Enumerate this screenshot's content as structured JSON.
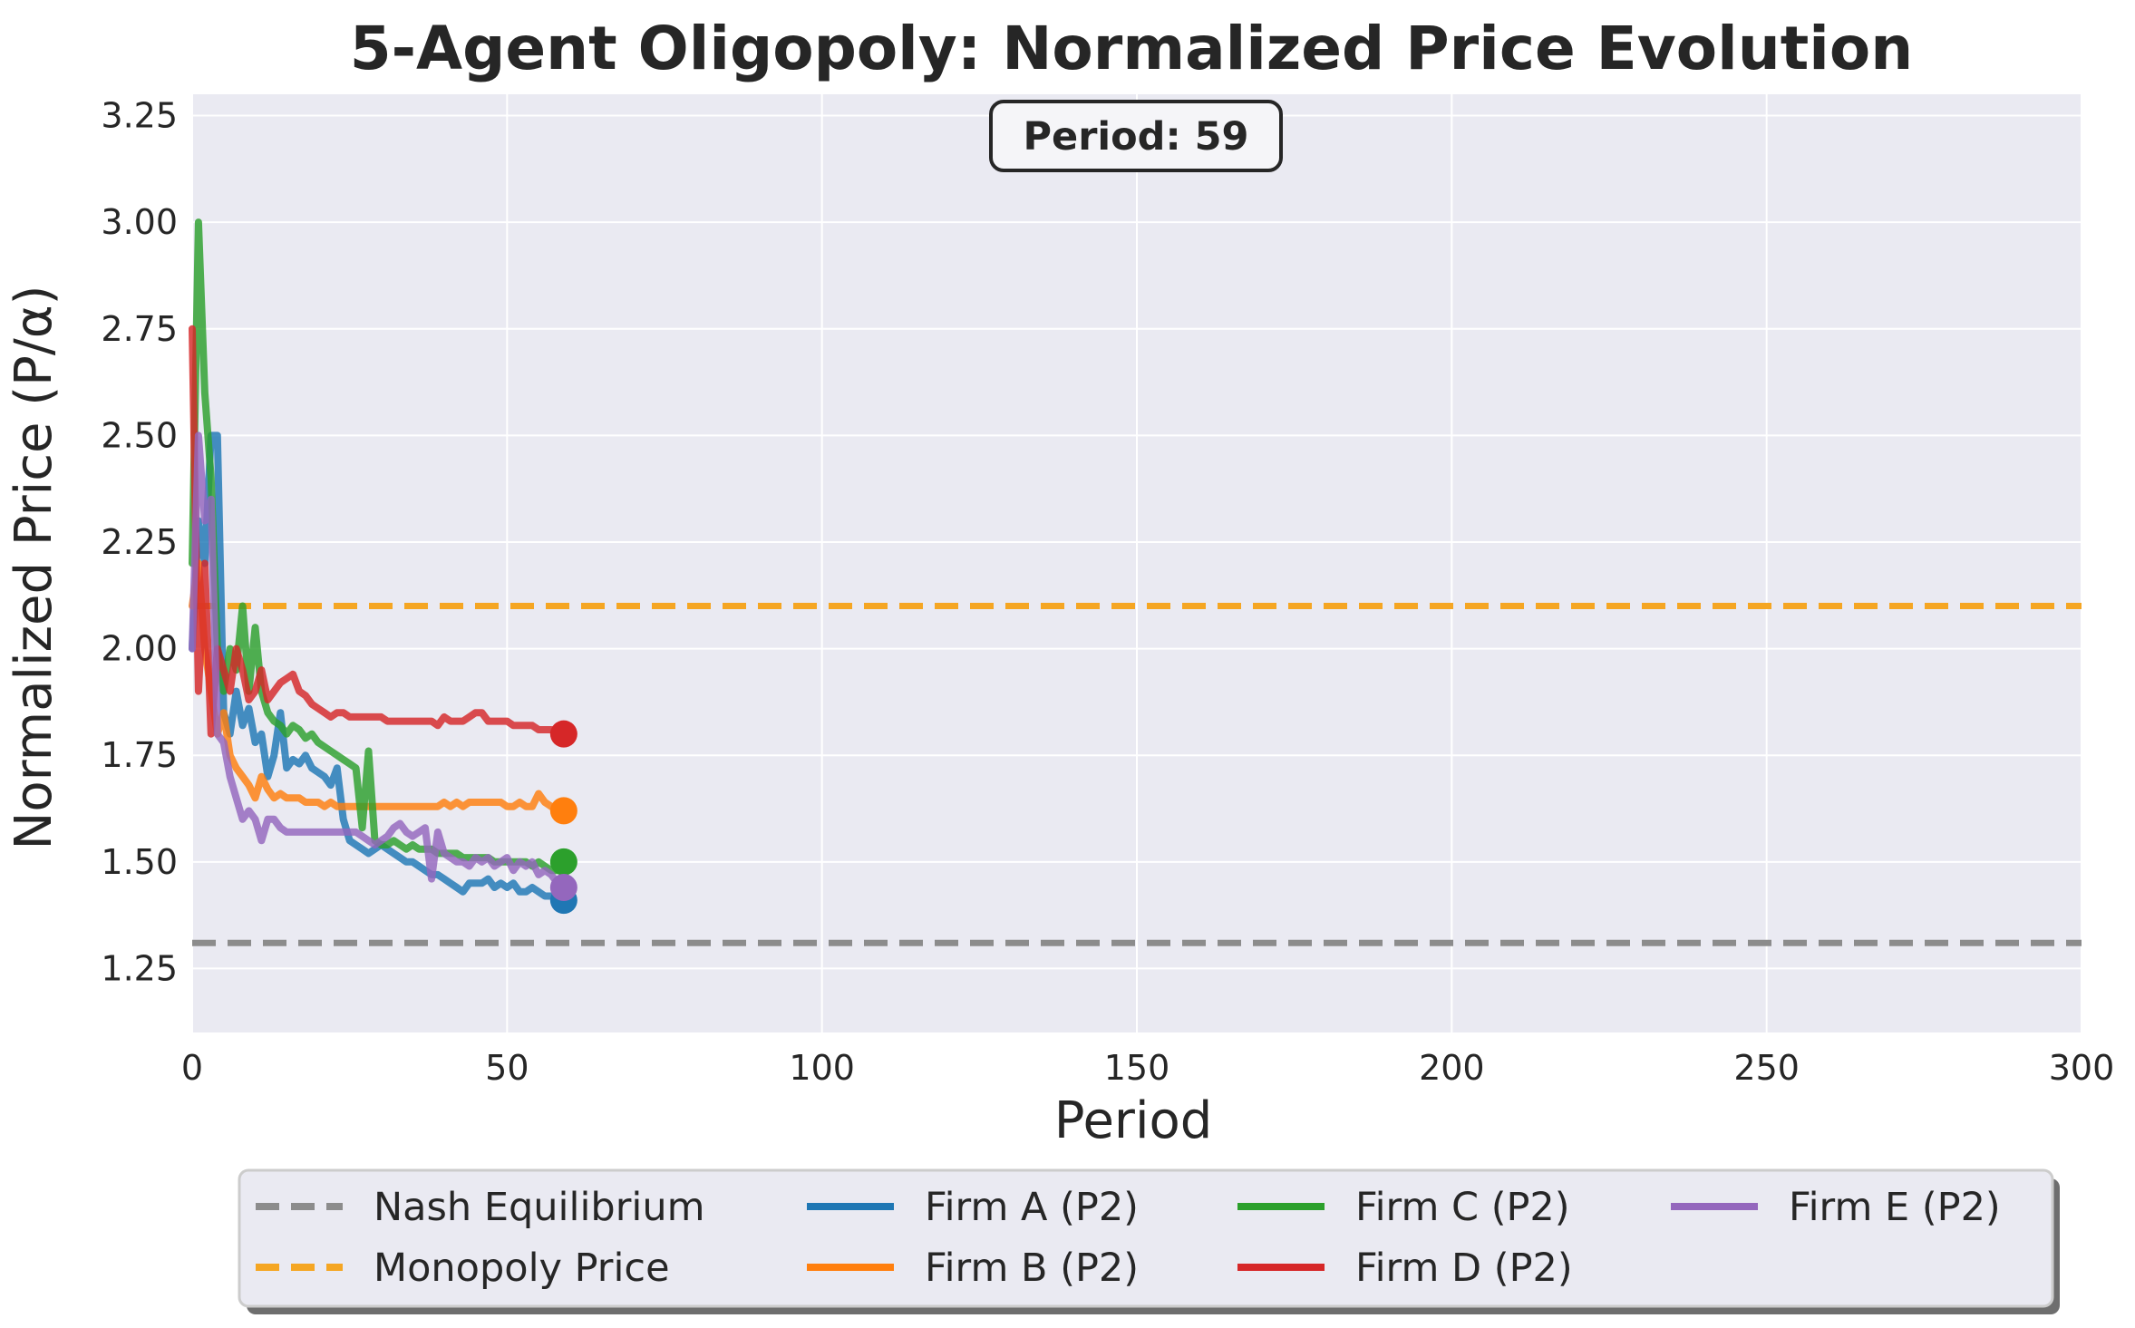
{
  "chart_data": {
    "type": "line",
    "title": "5-Agent Oligopoly: Normalized Price Evolution",
    "xlabel": "Period",
    "ylabel": "Normalized Price (P/α)",
    "xlim": [
      0,
      300
    ],
    "ylim": [
      1.1,
      3.3
    ],
    "xticks": [
      0,
      50,
      100,
      150,
      200,
      250,
      300
    ],
    "yticks": [
      1.25,
      1.5,
      1.75,
      2.0,
      2.25,
      2.5,
      2.75,
      3.0,
      3.25
    ],
    "xtick_labels": [
      "0",
      "50",
      "100",
      "150",
      "200",
      "250",
      "300"
    ],
    "ytick_labels": [
      "1.25",
      "1.50",
      "1.75",
      "2.00",
      "2.25",
      "2.50",
      "2.75",
      "3.00",
      "3.25"
    ],
    "grid": true,
    "legend_position": "bottom-center",
    "annotation": "Period: 59",
    "reference_lines": [
      {
        "name": "Nash Equilibrium",
        "y": 1.31,
        "color": "#8c8c8c",
        "style": "dashed"
      },
      {
        "name": "Monopoly Price",
        "y": 2.1,
        "color": "#f5a623",
        "style": "dashed"
      }
    ],
    "series": [
      {
        "name": "Firm A (P2)",
        "color": "#1f77b4",
        "x": [
          0,
          1,
          2,
          3,
          4,
          5,
          6,
          7,
          8,
          9,
          10,
          11,
          12,
          13,
          14,
          15,
          16,
          17,
          18,
          19,
          20,
          21,
          22,
          23,
          24,
          25,
          26,
          27,
          28,
          29,
          30,
          31,
          32,
          33,
          34,
          35,
          36,
          37,
          38,
          39,
          40,
          41,
          42,
          43,
          44,
          45,
          46,
          47,
          48,
          49,
          50,
          51,
          52,
          53,
          54,
          55,
          56,
          57,
          58,
          59
        ],
        "y": [
          2.0,
          2.3,
          2.2,
          2.5,
          2.5,
          1.85,
          1.8,
          1.9,
          1.82,
          1.86,
          1.78,
          1.8,
          1.7,
          1.75,
          1.85,
          1.72,
          1.74,
          1.73,
          1.75,
          1.72,
          1.71,
          1.7,
          1.68,
          1.72,
          1.6,
          1.55,
          1.54,
          1.53,
          1.52,
          1.53,
          1.54,
          1.53,
          1.52,
          1.51,
          1.5,
          1.5,
          1.49,
          1.48,
          1.47,
          1.47,
          1.46,
          1.45,
          1.44,
          1.43,
          1.45,
          1.45,
          1.45,
          1.46,
          1.44,
          1.45,
          1.44,
          1.45,
          1.43,
          1.43,
          1.44,
          1.43,
          1.42,
          1.42,
          1.41,
          1.41
        ]
      },
      {
        "name": "Firm B (P2)",
        "color": "#ff7f0e",
        "x": [
          0,
          1,
          2,
          3,
          4,
          5,
          6,
          7,
          8,
          9,
          10,
          11,
          12,
          13,
          14,
          15,
          16,
          17,
          18,
          19,
          20,
          21,
          22,
          23,
          24,
          25,
          26,
          27,
          28,
          29,
          30,
          31,
          32,
          33,
          34,
          35,
          36,
          37,
          38,
          39,
          40,
          41,
          42,
          43,
          44,
          45,
          46,
          47,
          48,
          49,
          50,
          51,
          52,
          53,
          54,
          55,
          56,
          57,
          58,
          59
        ],
        "y": [
          2.1,
          2.2,
          2.0,
          1.9,
          1.8,
          1.85,
          1.75,
          1.72,
          1.7,
          1.68,
          1.65,
          1.7,
          1.67,
          1.65,
          1.66,
          1.65,
          1.65,
          1.65,
          1.64,
          1.64,
          1.64,
          1.63,
          1.64,
          1.63,
          1.63,
          1.63,
          1.63,
          1.63,
          1.63,
          1.63,
          1.63,
          1.63,
          1.63,
          1.63,
          1.63,
          1.63,
          1.63,
          1.63,
          1.63,
          1.63,
          1.64,
          1.63,
          1.64,
          1.63,
          1.64,
          1.64,
          1.64,
          1.64,
          1.64,
          1.64,
          1.63,
          1.63,
          1.64,
          1.63,
          1.63,
          1.66,
          1.64,
          1.63,
          1.62,
          1.62
        ]
      },
      {
        "name": "Firm C (P2)",
        "color": "#2ca02c",
        "x": [
          0,
          1,
          2,
          3,
          4,
          5,
          6,
          7,
          8,
          9,
          10,
          11,
          12,
          13,
          14,
          15,
          16,
          17,
          18,
          19,
          20,
          21,
          22,
          23,
          24,
          25,
          26,
          27,
          28,
          29,
          30,
          31,
          32,
          33,
          34,
          35,
          36,
          37,
          38,
          39,
          40,
          41,
          42,
          43,
          44,
          45,
          46,
          47,
          48,
          49,
          50,
          51,
          52,
          53,
          54,
          55,
          56,
          57,
          58,
          59
        ],
        "y": [
          2.2,
          3.0,
          2.6,
          2.4,
          2.0,
          1.9,
          2.0,
          1.95,
          2.1,
          1.9,
          2.05,
          1.9,
          1.85,
          1.83,
          1.82,
          1.8,
          1.82,
          1.81,
          1.79,
          1.8,
          1.78,
          1.77,
          1.76,
          1.75,
          1.74,
          1.73,
          1.72,
          1.58,
          1.76,
          1.55,
          1.54,
          1.54,
          1.55,
          1.54,
          1.53,
          1.54,
          1.53,
          1.53,
          1.53,
          1.52,
          1.52,
          1.52,
          1.52,
          1.51,
          1.51,
          1.51,
          1.51,
          1.51,
          1.5,
          1.5,
          1.5,
          1.5,
          1.5,
          1.5,
          1.49,
          1.5,
          1.49,
          1.48,
          1.48,
          1.5
        ]
      },
      {
        "name": "Firm D (P2)",
        "color": "#d62728",
        "x": [
          0,
          1,
          2,
          3,
          4,
          5,
          6,
          7,
          8,
          9,
          10,
          11,
          12,
          13,
          14,
          15,
          16,
          17,
          18,
          19,
          20,
          21,
          22,
          23,
          24,
          25,
          26,
          27,
          28,
          29,
          30,
          31,
          32,
          33,
          34,
          35,
          36,
          37,
          38,
          39,
          40,
          41,
          42,
          43,
          44,
          45,
          46,
          47,
          48,
          49,
          50,
          51,
          52,
          53,
          54,
          55,
          56,
          57,
          58,
          59
        ],
        "y": [
          2.75,
          1.9,
          2.2,
          1.8,
          2.0,
          1.95,
          1.9,
          2.0,
          1.95,
          1.88,
          1.9,
          1.95,
          1.88,
          1.9,
          1.92,
          1.93,
          1.94,
          1.9,
          1.89,
          1.87,
          1.86,
          1.85,
          1.84,
          1.85,
          1.85,
          1.84,
          1.84,
          1.84,
          1.84,
          1.84,
          1.84,
          1.83,
          1.83,
          1.83,
          1.83,
          1.83,
          1.83,
          1.83,
          1.83,
          1.82,
          1.84,
          1.83,
          1.83,
          1.83,
          1.84,
          1.85,
          1.85,
          1.83,
          1.83,
          1.83,
          1.83,
          1.82,
          1.82,
          1.82,
          1.82,
          1.81,
          1.81,
          1.81,
          1.8,
          1.8
        ]
      },
      {
        "name": "Firm E (P2)",
        "color": "#9467bd",
        "x": [
          0,
          1,
          2,
          3,
          4,
          5,
          6,
          7,
          8,
          9,
          10,
          11,
          12,
          13,
          14,
          15,
          16,
          17,
          18,
          19,
          20,
          21,
          22,
          23,
          24,
          25,
          26,
          27,
          28,
          29,
          30,
          31,
          32,
          33,
          34,
          35,
          36,
          37,
          38,
          39,
          40,
          41,
          42,
          43,
          44,
          45,
          46,
          47,
          48,
          49,
          50,
          51,
          52,
          53,
          54,
          55,
          56,
          57,
          58,
          59
        ],
        "y": [
          2.0,
          2.5,
          2.3,
          2.35,
          1.8,
          1.78,
          1.7,
          1.65,
          1.6,
          1.62,
          1.6,
          1.55,
          1.6,
          1.6,
          1.58,
          1.57,
          1.57,
          1.57,
          1.57,
          1.57,
          1.57,
          1.57,
          1.57,
          1.57,
          1.57,
          1.57,
          1.57,
          1.56,
          1.55,
          1.54,
          1.55,
          1.56,
          1.58,
          1.59,
          1.57,
          1.56,
          1.57,
          1.58,
          1.46,
          1.57,
          1.52,
          1.51,
          1.5,
          1.5,
          1.49,
          1.51,
          1.5,
          1.51,
          1.49,
          1.5,
          1.51,
          1.48,
          1.5,
          1.49,
          1.5,
          1.47,
          1.48,
          1.47,
          1.45,
          1.44
        ]
      }
    ]
  }
}
